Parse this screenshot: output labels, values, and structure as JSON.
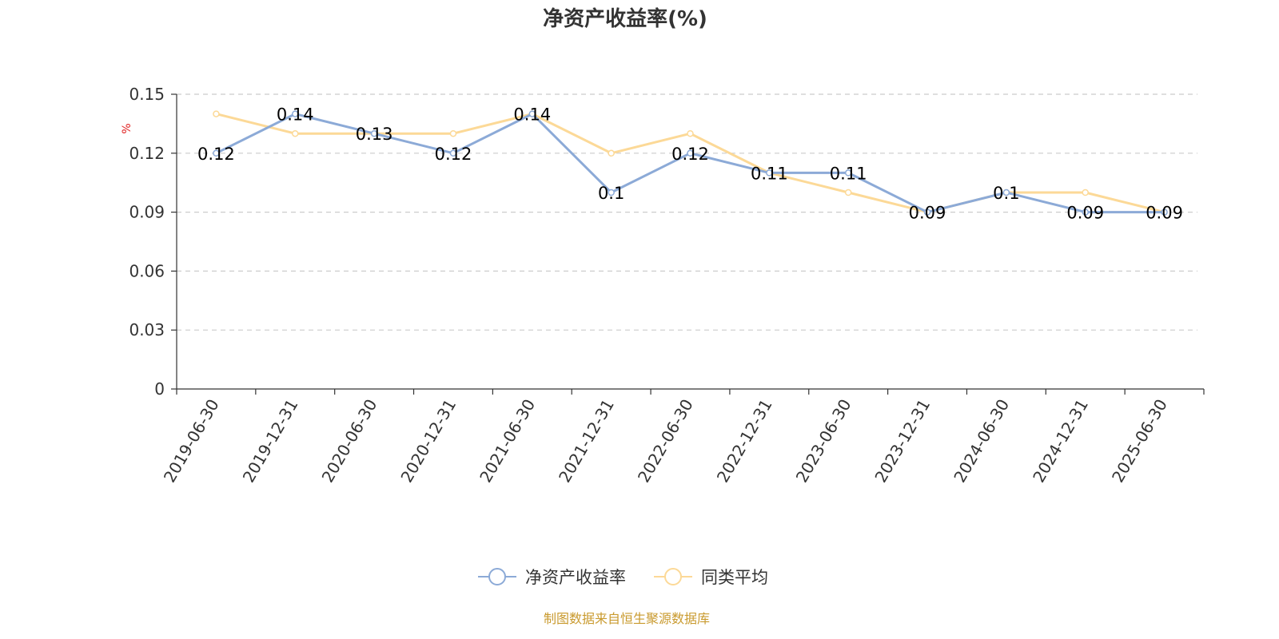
{
  "chart_data": {
    "type": "line",
    "title": "净资产收益率(%)",
    "ylabel": "%",
    "xlabel": "",
    "categories": [
      "2019-06-30",
      "2019-12-31",
      "2020-06-30",
      "2020-12-31",
      "2021-06-30",
      "2021-12-31",
      "2022-06-30",
      "2022-12-31",
      "2023-06-30",
      "2023-12-31",
      "2024-06-30",
      "2024-12-31",
      "2025-06-30"
    ],
    "ylim": [
      0,
      0.15
    ],
    "yticks": [
      "0",
      "0.03",
      "0.06",
      "0.09",
      "0.12",
      "0.15"
    ],
    "grid": true,
    "legend_position": "bottom",
    "series": [
      {
        "name": "净资产收益率",
        "color": "#8caad7",
        "values": [
          0.12,
          0.14,
          0.13,
          0.12,
          0.14,
          0.1,
          0.12,
          0.11,
          0.11,
          0.09,
          0.1,
          0.09,
          0.09
        ],
        "labels": [
          "0.12",
          "0.14",
          "0.13",
          "0.12",
          "0.14",
          "0.1",
          "0.12",
          "0.11",
          "0.11",
          "0.09",
          "0.1",
          "0.09",
          "0.09"
        ]
      },
      {
        "name": "同类平均",
        "color": "#fcd997",
        "values": [
          0.14,
          0.13,
          0.13,
          0.13,
          0.14,
          0.12,
          0.13,
          0.11,
          0.1,
          0.09,
          0.1,
          0.1,
          0.09
        ]
      }
    ]
  },
  "footer": {
    "source": "制图数据来自恒生聚源数据库",
    "source_color": "#c99a2e"
  },
  "colors": {
    "axis": "#333333",
    "grid": "#cccccc",
    "unit": "#e02020"
  }
}
